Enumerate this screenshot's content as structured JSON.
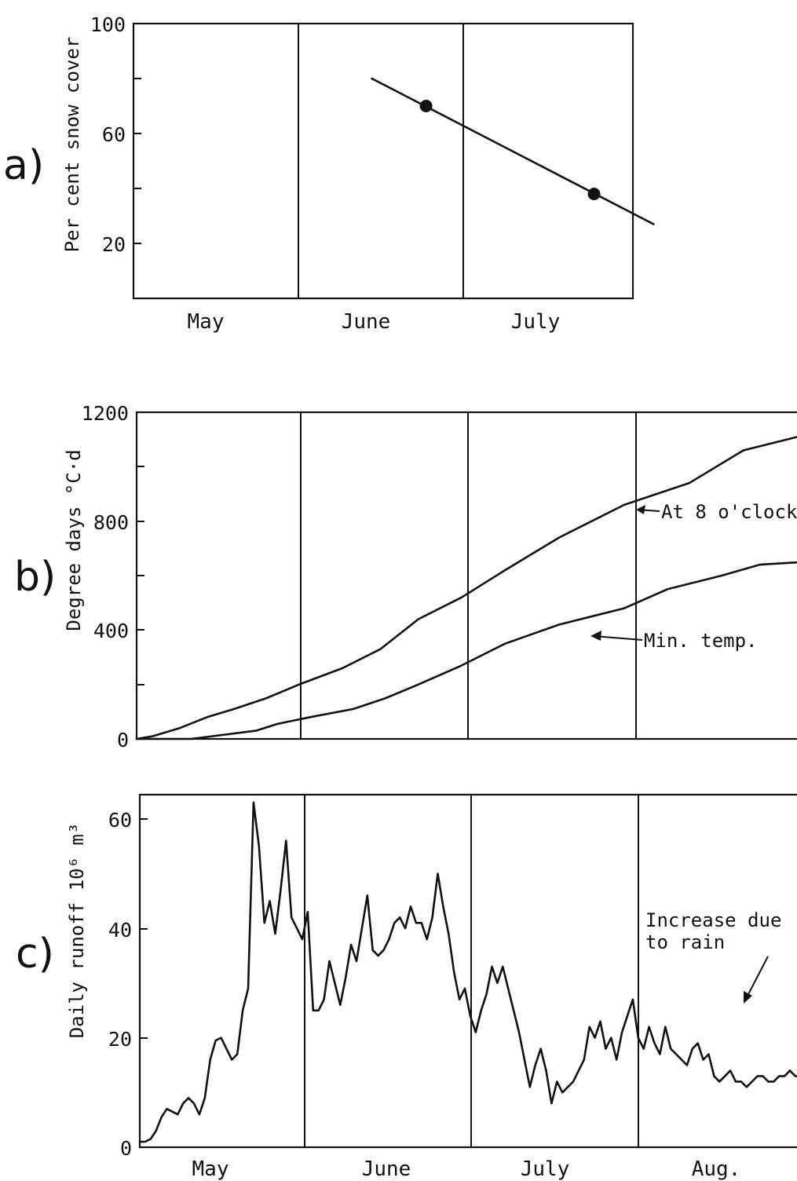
{
  "chart_data": [
    {
      "type": "line",
      "panel_label": "a)",
      "ylabel": "Per cent snow cover",
      "ylim": [
        0,
        100
      ],
      "yticks": [
        20,
        60,
        100
      ],
      "ytick_labels": [
        "20",
        "60",
        "100"
      ],
      "minor_yticks": [
        40,
        80
      ],
      "months": [
        "May",
        "June",
        "July"
      ],
      "x_unit": "day index from 1 May",
      "series": [
        {
          "x": [
            44,
            96
          ],
          "y": [
            80,
            27
          ]
        }
      ],
      "points": [
        {
          "x": 54,
          "y": 70
        },
        {
          "x": 85,
          "y": 38
        }
      ],
      "grid": false
    },
    {
      "type": "line",
      "panel_label": "b)",
      "ylabel": "Degree days °C·d",
      "ylim": [
        0,
        1200
      ],
      "yticks": [
        0,
        400,
        800,
        1200
      ],
      "ytick_labels": [
        "0",
        "400",
        "800",
        "1200"
      ],
      "minor_yticks": [
        200,
        600,
        1000
      ],
      "months": [],
      "series": [
        {
          "label": "At 8 o'clock",
          "x": [
            0,
            3,
            8,
            13,
            18,
            24,
            30,
            38,
            45,
            52,
            60,
            68,
            78,
            90,
            102,
            112,
            120,
            123
          ],
          "y": [
            0,
            10,
            40,
            80,
            110,
            150,
            200,
            260,
            330,
            440,
            520,
            620,
            740,
            860,
            940,
            1060,
            1100,
            1115
          ]
        },
        {
          "label": "Min. temp.",
          "x": [
            0,
            10,
            18,
            22,
            26,
            32,
            40,
            46,
            52,
            60,
            68,
            78,
            90,
            98,
            108,
            115,
            123
          ],
          "y": [
            0,
            0,
            20,
            30,
            55,
            80,
            110,
            150,
            200,
            270,
            350,
            420,
            480,
            550,
            600,
            640,
            650
          ]
        }
      ],
      "grid": false
    },
    {
      "type": "line",
      "panel_label": "c)",
      "ylabel": "Daily runoff  10⁶ m³",
      "ylim": [
        0,
        65
      ],
      "yticks": [
        0,
        20,
        40,
        60
      ],
      "ytick_labels": [
        "0",
        "20",
        "40",
        "60"
      ],
      "months": [
        "May",
        "June",
        "July",
        "Aug."
      ],
      "annotation": "Increase due to rain",
      "series": [
        {
          "x": [
            0,
            1,
            2,
            3,
            4,
            5,
            6,
            7,
            8,
            9,
            10,
            11,
            12,
            13,
            14,
            15,
            16,
            17,
            18,
            19,
            20,
            21,
            22,
            23,
            24,
            25,
            26,
            27,
            28,
            29,
            30,
            31,
            32,
            33,
            34,
            35,
            36,
            37,
            38,
            39,
            40,
            41,
            42,
            43,
            44,
            45,
            46,
            47,
            48,
            49,
            50,
            51,
            52,
            53,
            54,
            55,
            56,
            57,
            58,
            59,
            60,
            61,
            62,
            63,
            64,
            65,
            66,
            67,
            68,
            69,
            70,
            71,
            72,
            73,
            74,
            75,
            76,
            77,
            78,
            79,
            80,
            81,
            82,
            83,
            84,
            85,
            86,
            87,
            88,
            89,
            90,
            91,
            92,
            93,
            94,
            95,
            96,
            97,
            98,
            99,
            100,
            101,
            102,
            103,
            104,
            105,
            106,
            107,
            108,
            109,
            110,
            111,
            112,
            113,
            114,
            115,
            116,
            117,
            118,
            119,
            120,
            121,
            122
          ],
          "y": [
            1,
            1,
            1.5,
            3,
            5.5,
            7,
            6.5,
            6,
            8,
            9,
            8,
            6,
            9,
            16,
            19.5,
            20,
            18,
            16,
            17,
            25,
            29,
            63,
            55,
            41,
            45,
            39,
            47,
            56,
            42,
            40,
            38,
            43,
            25,
            25,
            27,
            34,
            30,
            26,
            31,
            37,
            34,
            40,
            46,
            36,
            35,
            36,
            38,
            41,
            42,
            40,
            44,
            41,
            41,
            38,
            42,
            50,
            44,
            39,
            32,
            27,
            29,
            24,
            21,
            25,
            28,
            33,
            30,
            33,
            29,
            25,
            21,
            16,
            11,
            15,
            18,
            14,
            8,
            12,
            10,
            11,
            12,
            14,
            16,
            22,
            20,
            23,
            18,
            20,
            16,
            21,
            24,
            27,
            20,
            18,
            22,
            19,
            17,
            22,
            18,
            17,
            16,
            15,
            18,
            19,
            16,
            17,
            13,
            12,
            13,
            14,
            12,
            12,
            11,
            12,
            13,
            13,
            12,
            12,
            13,
            13,
            14,
            13,
            13
          ]
        }
      ],
      "grid": false
    }
  ]
}
